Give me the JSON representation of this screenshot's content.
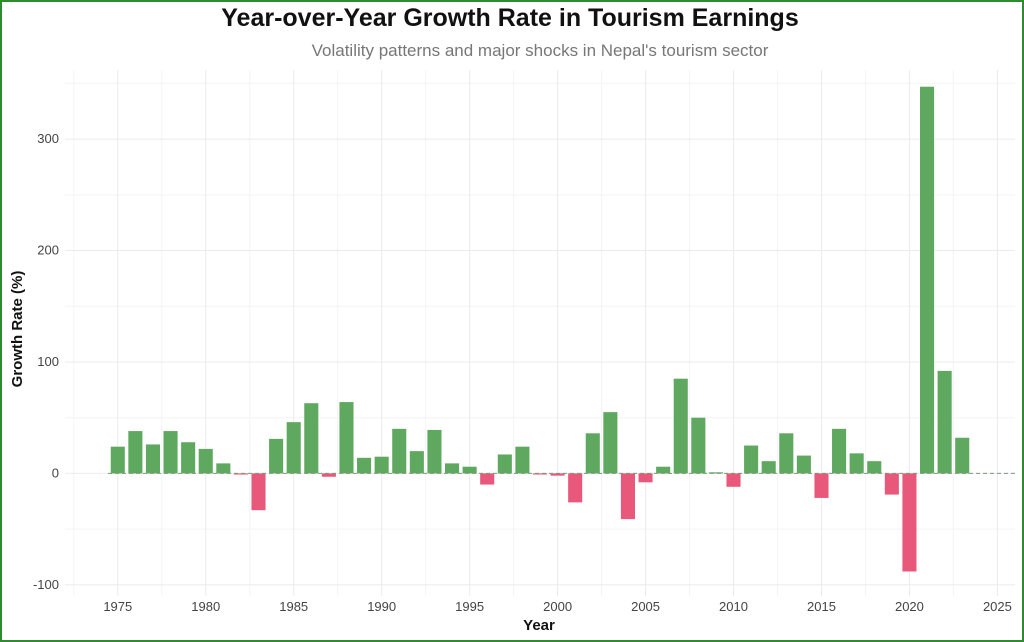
{
  "colors": {
    "positive": "#5fa85f",
    "negative": "#e8587a",
    "frame": "#2e8b2e",
    "grid": "#ebebeb",
    "zero_line": "#7a9a7a"
  },
  "chart_data": {
    "type": "bar",
    "title": "Year-over-Year Growth Rate in Tourism Earnings",
    "subtitle": "Volatility patterns and major shocks in Nepal's tourism sector",
    "xlabel": "Year",
    "ylabel": "Growth Rate (%)",
    "xlim": [
      1972,
      2026
    ],
    "ylim": [
      -110,
      362
    ],
    "x_ticks": [
      1975,
      1980,
      1985,
      1990,
      1995,
      2000,
      2005,
      2010,
      2015,
      2020,
      2025
    ],
    "y_ticks": [
      -100,
      0,
      100,
      200,
      300
    ],
    "grid": true,
    "zero_line": "dashed",
    "color_rule": "green for growth, red for decline",
    "years": [
      1975,
      1976,
      1977,
      1978,
      1979,
      1980,
      1981,
      1982,
      1983,
      1984,
      1985,
      1986,
      1987,
      1988,
      1989,
      1990,
      1991,
      1992,
      1993,
      1994,
      1995,
      1996,
      1997,
      1998,
      1999,
      2000,
      2001,
      2002,
      2003,
      2004,
      2005,
      2006,
      2007,
      2008,
      2009,
      2010,
      2011,
      2012,
      2013,
      2014,
      2015,
      2016,
      2017,
      2018,
      2019,
      2020,
      2021,
      2022,
      2023
    ],
    "values": [
      24,
      38,
      26,
      38,
      28,
      22,
      9,
      -1,
      -33,
      31,
      46,
      63,
      -3,
      64,
      14,
      15,
      40,
      20,
      39,
      9,
      6,
      -10,
      17,
      24,
      -1,
      -2,
      -26,
      36,
      55,
      -41,
      -8,
      6,
      85,
      50,
      1,
      -12,
      25,
      11,
      36,
      16,
      -22,
      40,
      18,
      11,
      -19,
      -88,
      347,
      92,
      32
    ]
  }
}
